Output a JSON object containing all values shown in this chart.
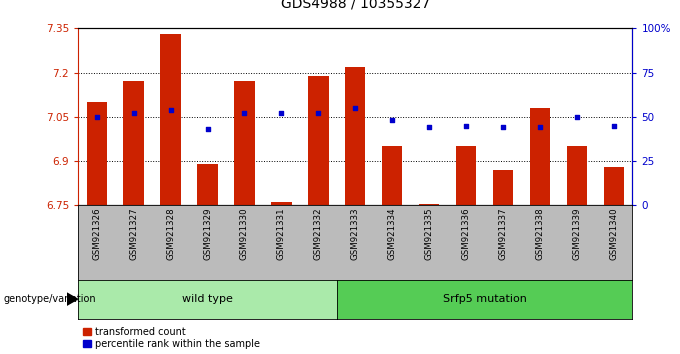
{
  "title": "GDS4988 / 10355327",
  "samples": [
    "GSM921326",
    "GSM921327",
    "GSM921328",
    "GSM921329",
    "GSM921330",
    "GSM921331",
    "GSM921332",
    "GSM921333",
    "GSM921334",
    "GSM921335",
    "GSM921336",
    "GSM921337",
    "GSM921338",
    "GSM921339",
    "GSM921340"
  ],
  "bar_values": [
    7.1,
    7.17,
    7.33,
    6.89,
    7.17,
    6.76,
    7.19,
    7.22,
    6.95,
    6.755,
    6.95,
    6.87,
    7.08,
    6.95,
    6.88
  ],
  "percentile_values": [
    50,
    52,
    54,
    43,
    52,
    52,
    52,
    55,
    48,
    44,
    45,
    44,
    44,
    50,
    45
  ],
  "ymin": 6.75,
  "ymax": 7.35,
  "y_ticks": [
    6.75,
    6.9,
    7.05,
    7.2,
    7.35
  ],
  "y_ticklabels": [
    "6.75",
    "6.9",
    "7.05",
    "7.2",
    "7.35"
  ],
  "right_yticks": [
    0,
    25,
    50,
    75,
    100
  ],
  "right_yticklabels": [
    "0",
    "25",
    "50",
    "75",
    "100%"
  ],
  "bar_color": "#cc2200",
  "dot_color": "#0000cc",
  "bg_color": "#ffffff",
  "grey_color": "#bbbbbb",
  "wild_type_color": "#aaeaaa",
  "mutation_color": "#55cc55",
  "wild_type_samples": 7,
  "mutation_samples": 8,
  "wild_type_label": "wild type",
  "mutation_label": "Srfp5 mutation",
  "legend_bar_label": "transformed count",
  "legend_dot_label": "percentile rank within the sample",
  "genotype_label": "genotype/variation",
  "title_fontsize": 10,
  "tick_fontsize": 7.5,
  "label_fontsize": 8
}
